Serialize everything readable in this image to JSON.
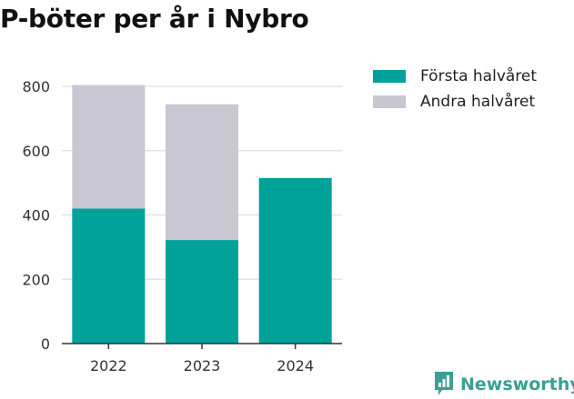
{
  "chart_data": {
    "type": "bar",
    "stacked": true,
    "title": "P-böter per år i Nybro",
    "categories": [
      "2022",
      "2023",
      "2024"
    ],
    "series": [
      {
        "name": "Första halvåret",
        "values": [
          420,
          322,
          515
        ],
        "color": "#00a29a"
      },
      {
        "name": "Andra halvåret",
        "values": [
          384,
          422,
          0
        ],
        "color": "#c8c7d2"
      }
    ],
    "ylim": [
      0,
      800
    ],
    "yticks": [
      0,
      200,
      400,
      600,
      800
    ],
    "grid": true,
    "legend": "top-right"
  },
  "brand": {
    "name": "Newsworthy",
    "color": "#3a9f94",
    "icon": "newsworthy-logo-icon"
  }
}
